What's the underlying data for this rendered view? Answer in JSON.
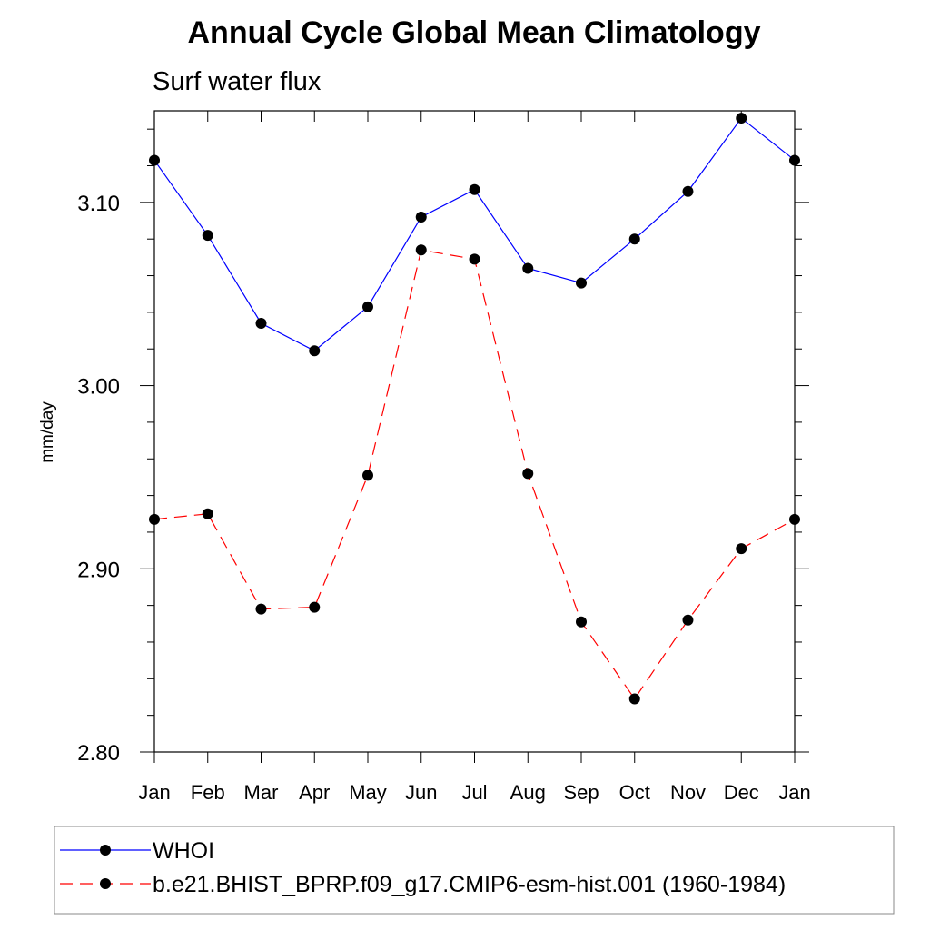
{
  "chart_data": {
    "type": "line",
    "title": "Annual Cycle Global Mean Climatology",
    "subtitle": "Surf water flux",
    "xlabel": "",
    "ylabel": "mm/day",
    "categories": [
      "Jan",
      "Feb",
      "Mar",
      "Apr",
      "May",
      "Jun",
      "Jul",
      "Aug",
      "Sep",
      "Oct",
      "Nov",
      "Dec",
      "Jan"
    ],
    "ylim": [
      2.8,
      3.15
    ],
    "yticks": [
      "2.80",
      "2.90",
      "3.00",
      "3.10"
    ],
    "grid": false,
    "legend_position": "bottom",
    "series": [
      {
        "name": "WHOI",
        "color": "#0000ff",
        "dash": "solid",
        "marker": "filled-circle",
        "values": [
          3.123,
          3.082,
          3.034,
          3.019,
          3.043,
          3.092,
          3.107,
          3.064,
          3.056,
          3.08,
          3.106,
          3.146,
          3.123
        ]
      },
      {
        "name": "b.e21.BHIST_BPRP.f09_g17.CMIP6-esm-hist.001 (1960-1984)",
        "color": "#ff0000",
        "dash": "dashed",
        "marker": "filled-circle",
        "values": [
          2.927,
          2.93,
          2.878,
          2.879,
          2.951,
          3.074,
          3.069,
          2.952,
          2.871,
          2.829,
          2.872,
          2.911,
          2.927
        ]
      }
    ]
  }
}
